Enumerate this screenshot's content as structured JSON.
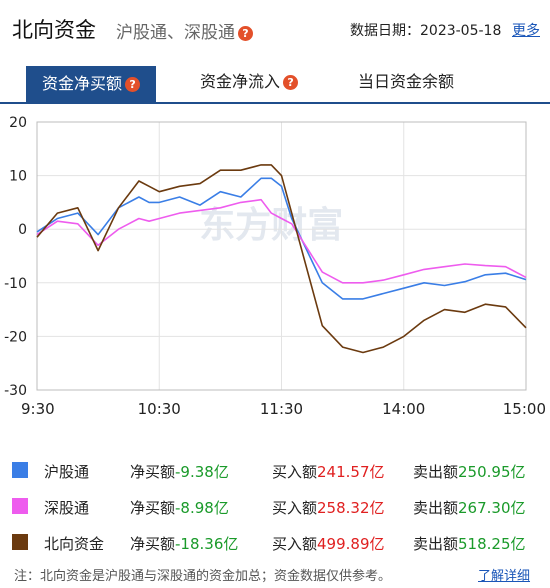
{
  "header": {
    "title": "北向资金",
    "subtitle": "沪股通、深股通",
    "help": "?",
    "date_label": "数据日期：2023-05-18",
    "more": "更多"
  },
  "tabs": [
    {
      "label": "资金净买额",
      "active": true,
      "help": "?"
    },
    {
      "label": "资金净流入",
      "active": false,
      "help": "?"
    },
    {
      "label": "当日资金余额",
      "active": false
    }
  ],
  "chart_data": {
    "type": "line",
    "x_ticks": [
      "9:30",
      "10:30",
      "11:30",
      "14:00",
      "15:00"
    ],
    "y_ticks": [
      "20",
      "10",
      "0",
      "-10",
      "-20",
      "-30"
    ],
    "ylim": [
      -30,
      20
    ],
    "grid": true,
    "watermark": "东方财富",
    "series": [
      {
        "name": "沪股通",
        "color": "#3a7ee6",
        "x": [
          0,
          10,
          20,
          30,
          40,
          50,
          55,
          60,
          70,
          80,
          90,
          100,
          110,
          115,
          120,
          125,
          130,
          135,
          140,
          150,
          160,
          170,
          180,
          190,
          200,
          210,
          220,
          230,
          240
        ],
        "y": [
          -0.5,
          2,
          3,
          -1,
          4,
          6,
          5,
          5,
          6,
          4.5,
          7,
          6,
          9.5,
          9.5,
          8,
          2,
          -2,
          -6,
          -10,
          -13,
          -13,
          -12,
          -11,
          -10,
          -10.5,
          -9.8,
          -8.5,
          -8.2,
          -9.4
        ]
      },
      {
        "name": "深股通",
        "color": "#ee5cee",
        "x": [
          0,
          10,
          20,
          30,
          40,
          50,
          55,
          60,
          70,
          80,
          90,
          100,
          110,
          115,
          120,
          125,
          130,
          135,
          140,
          150,
          160,
          170,
          180,
          190,
          200,
          210,
          220,
          230,
          240
        ],
        "y": [
          -1,
          1.5,
          1,
          -3,
          0,
          2,
          1.5,
          2,
          3,
          3.5,
          4,
          5,
          5.5,
          3,
          2,
          1,
          -2,
          -5,
          -8,
          -10,
          -10,
          -9.5,
          -8.5,
          -7.5,
          -7,
          -6.5,
          -6.8,
          -7,
          -9.0
        ]
      },
      {
        "name": "北向资金",
        "color": "#6b3a0f",
        "x": [
          0,
          10,
          20,
          30,
          40,
          50,
          55,
          60,
          70,
          80,
          90,
          100,
          110,
          115,
          120,
          125,
          130,
          135,
          140,
          150,
          160,
          170,
          180,
          190,
          200,
          210,
          220,
          230,
          240
        ],
        "y": [
          -1.5,
          3,
          4,
          -4,
          4,
          9,
          8,
          7,
          8,
          8.5,
          11,
          11,
          12,
          12,
          10,
          3,
          -4,
          -11,
          -18,
          -22,
          -23,
          -22,
          -20,
          -17,
          -15,
          -15.5,
          -14,
          -14.5,
          -18.4
        ]
      }
    ]
  },
  "legend": [
    {
      "name": "沪股通",
      "color": "#3a7ee6",
      "net_label": "净买额",
      "net": "-9.38亿",
      "buy_label": "买入额",
      "buy": "241.57亿",
      "sell_label": "卖出额",
      "sell": "250.95亿"
    },
    {
      "name": "深股通",
      "color": "#ee5cee",
      "net_label": "净买额",
      "net": "-8.98亿",
      "buy_label": "买入额",
      "buy": "258.32亿",
      "sell_label": "卖出额",
      "sell": "267.30亿"
    },
    {
      "name": "北向资金",
      "color": "#6b3a0f",
      "net_label": "净买额",
      "net": "-18.36亿",
      "buy_label": "买入额",
      "buy": "499.89亿",
      "sell_label": "卖出额",
      "sell": "518.25亿"
    }
  ],
  "note": "注：北向资金是沪股通与深股通的资金加总；资金数据仅供参考。",
  "note_link": "了解详细"
}
